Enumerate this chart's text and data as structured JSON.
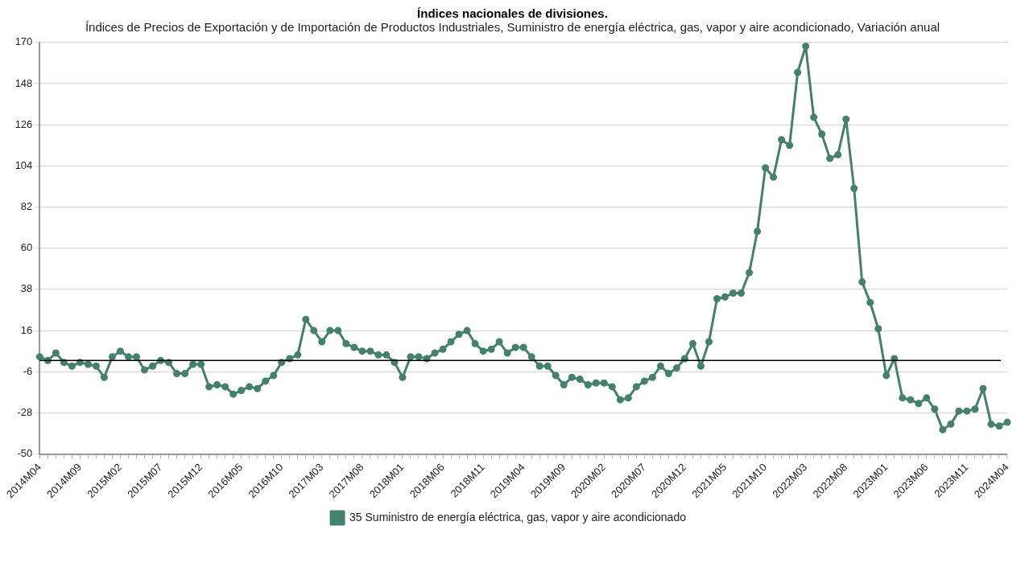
{
  "chart_data": {
    "type": "line",
    "title": "Índices nacionales de divisiones.",
    "subtitle": "Índices de Precios de Exportación y de Importación de Productos Industriales, Suministro de energía eléctrica, gas, vapor y aire acondicionado, Variación anual",
    "categories": [
      "2014M04",
      null,
      null,
      null,
      null,
      "2014M09",
      null,
      null,
      null,
      null,
      "2015M02",
      null,
      null,
      null,
      null,
      "2015M07",
      null,
      null,
      null,
      null,
      "2015M12",
      null,
      null,
      null,
      null,
      "2016M05",
      null,
      null,
      null,
      null,
      "2016M10",
      null,
      null,
      null,
      null,
      "2017M03",
      null,
      null,
      null,
      null,
      "2017M08",
      null,
      null,
      null,
      null,
      "2018M01",
      null,
      null,
      null,
      null,
      "2018M06",
      null,
      null,
      null,
      null,
      "2018M11",
      null,
      null,
      null,
      null,
      "2019M04",
      null,
      null,
      null,
      null,
      "2019M09",
      null,
      null,
      null,
      null,
      "2020M02",
      null,
      null,
      null,
      null,
      "2020M07",
      null,
      null,
      null,
      null,
      "2020M12",
      null,
      null,
      null,
      null,
      "2021M05",
      null,
      null,
      null,
      null,
      "2021M10",
      null,
      null,
      null,
      null,
      "2022M03",
      null,
      null,
      null,
      null,
      "2022M08",
      null,
      null,
      null,
      null,
      "2023M01",
      null,
      null,
      null,
      null,
      "2023M06",
      null,
      null,
      null,
      null,
      "2023M11",
      null,
      null,
      null,
      null,
      "2024M04"
    ],
    "series": [
      {
        "name": "35 Suministro de energía eléctrica, gas, vapor y aire acondicionado",
        "color": "#45806f",
        "values": [
          2,
          0,
          4,
          -1,
          -3,
          -1,
          -2,
          -3,
          -9,
          2,
          5,
          2,
          2,
          -5,
          -3,
          0,
          -1,
          -7,
          -7,
          -2,
          -2,
          -14,
          -13,
          -14,
          -18,
          -16,
          -14,
          -15,
          -11,
          -8,
          -1,
          1,
          3,
          22,
          16,
          10,
          16,
          16,
          9,
          7,
          5,
          5,
          3,
          3,
          -1,
          -9,
          2,
          2,
          1,
          4,
          6,
          10,
          14,
          16,
          9,
          5,
          6,
          10,
          4,
          7,
          7,
          2,
          -3,
          -3,
          -8,
          -13,
          -9,
          -10,
          -13,
          -12,
          -12,
          -14,
          -21,
          -20,
          -14,
          -11,
          -9,
          -3,
          -7,
          -4,
          1,
          9,
          -3,
          10,
          33,
          34,
          36,
          36,
          47,
          69,
          103,
          98,
          118,
          115,
          154,
          168,
          130,
          121,
          108,
          110,
          129,
          92,
          42,
          31,
          17,
          -8,
          1,
          -20,
          -21,
          -23,
          -20,
          -26,
          -37,
          -34,
          -27,
          -27,
          -26,
          -15,
          -34,
          -35,
          -33
        ]
      }
    ],
    "ylim": [
      -50,
      170
    ],
    "yticks": [
      170,
      148,
      126,
      104,
      82,
      60,
      38,
      16,
      -6,
      -28,
      -50
    ],
    "ref_lines": [
      {
        "axis": "y",
        "value": 0,
        "color": "#000000"
      }
    ],
    "grid": "y",
    "legend": "bottom",
    "marker": "circle",
    "line_style": "solid"
  }
}
